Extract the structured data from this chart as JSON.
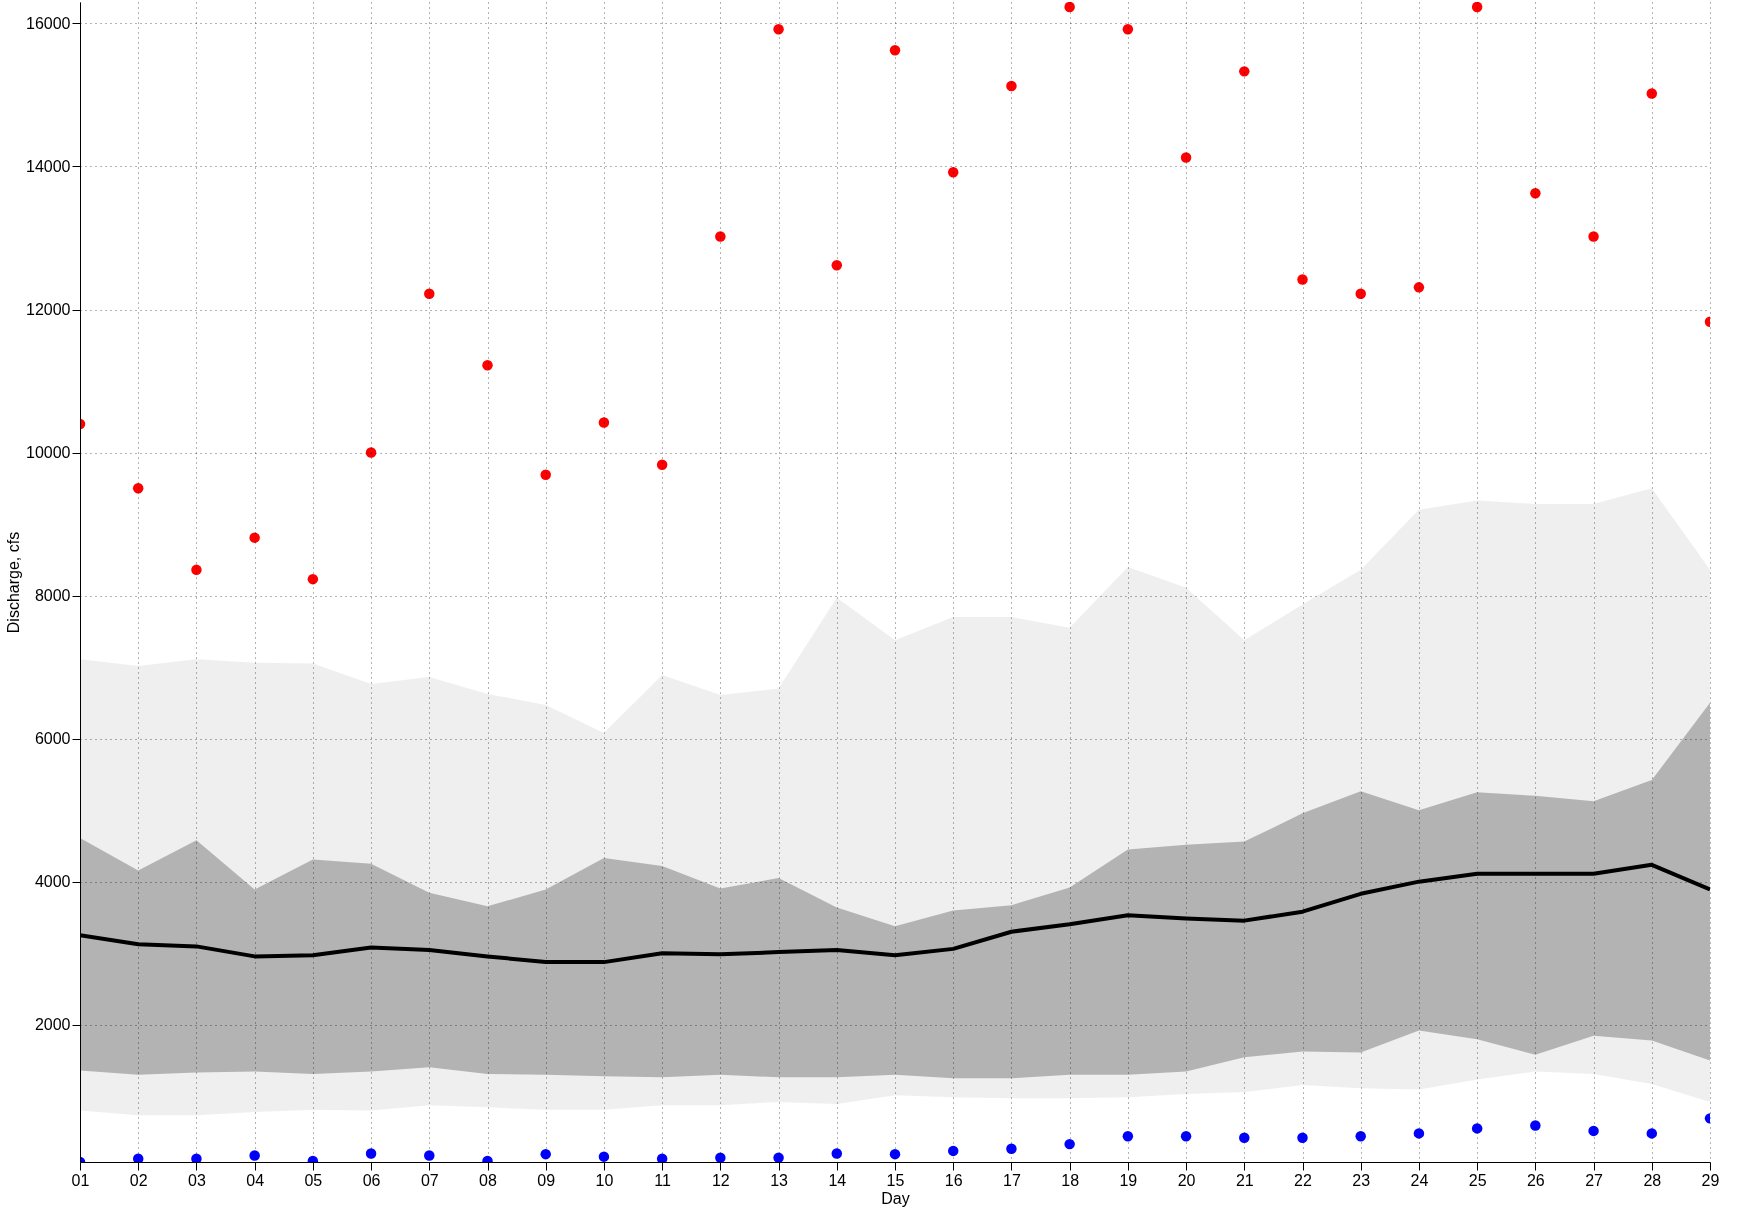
{
  "chart_data": {
    "type": "line",
    "xlabel": "Day",
    "ylabel": "Discharge, cfs",
    "categories": [
      "01",
      "02",
      "03",
      "04",
      "05",
      "06",
      "07",
      "08",
      "09",
      "10",
      "11",
      "12",
      "13",
      "14",
      "15",
      "16",
      "17",
      "18",
      "19",
      "20",
      "21",
      "22",
      "23",
      "24",
      "25",
      "26",
      "27",
      "28",
      "29"
    ],
    "ylim": [
      80,
      16300
    ],
    "yticks": [
      2000,
      4000,
      6000,
      8000,
      10000,
      12000,
      14000,
      16000
    ],
    "grid": true,
    "series": [
      {
        "type": "line",
        "color": "#bfbfbf",
        "values": [
          null,
          null,
          null,
          null,
          null,
          null,
          null,
          null,
          null,
          null,
          null,
          null,
          null,
          null,
          null,
          null,
          null,
          null,
          null,
          null,
          null,
          null,
          null,
          null,
          null,
          null,
          null,
          null,
          null
        ],
        "lower": [
          800,
          735,
          735,
          780,
          810,
          800,
          875,
          845,
          810,
          810,
          875,
          875,
          920,
          890,
          1015,
          985,
          970,
          970,
          985,
          1030,
          1060,
          1155,
          1110,
          1095,
          1235,
          1345,
          1310,
          1170,
          920
        ],
        "upper": [
          7110,
          7015,
          7110,
          7060,
          7050,
          6765,
          6860,
          6625,
          6470,
          6080,
          6890,
          6610,
          6700,
          7970,
          7375,
          7700,
          7700,
          7550,
          8400,
          8110,
          7375,
          7875,
          8360,
          9200,
          9330,
          9280,
          9280,
          9500,
          8360
        ]
      },
      {
        "color": "#000000",
        "values": [
          3250,
          3125,
          3095,
          2955,
          2970,
          3080,
          3045,
          2955,
          2875,
          2875,
          3000,
          2985,
          3015,
          3045,
          2970,
          3060,
          3300,
          3405,
          3530,
          3485,
          3455,
          3580,
          3830,
          4000,
          4110,
          4110,
          4110,
          4235,
          3890
        ],
        "lower": [
          1360,
          1300,
          1330,
          1345,
          1310,
          1345,
          1405,
          1310,
          1300,
          1280,
          1265,
          1300,
          1265,
          1265,
          1300,
          1250,
          1250,
          1300,
          1300,
          1345,
          1545,
          1625,
          1610,
          1920,
          1795,
          1580,
          1845,
          1780,
          1500
        ],
        "upper": [
          4610,
          4155,
          4580,
          3890,
          4310,
          4250,
          3845,
          3655,
          3890,
          4330,
          4220,
          3905,
          4050,
          3640,
          3375,
          3595,
          3670,
          3920,
          4450,
          4515,
          4560,
          4955,
          5265,
          5000,
          5250,
          5200,
          5125,
          5420,
          6500
        ]
      },
      {
        "type": "scatter",
        "color": "#ff0000",
        "marker": "circle",
        "values": [
          10400,
          9500,
          8360,
          8810,
          8230,
          10000,
          12220,
          11220,
          9690,
          10420,
          9830,
          13020,
          15920,
          12620,
          15625,
          13920,
          15125,
          16230,
          15920,
          14125,
          15330,
          12420,
          12220,
          12310,
          16230,
          13625,
          13020,
          15020,
          11830
        ]
      },
      {
        "type": "scatter",
        "color": "#0000ff",
        "marker": "circle",
        "values": [
          80,
          125,
          125,
          170,
          95,
          200,
          170,
          95,
          190,
          155,
          125,
          140,
          140,
          200,
          190,
          235,
          265,
          330,
          440,
          440,
          420,
          420,
          440,
          480,
          550,
          590,
          515,
          480,
          690
        ]
      }
    ]
  }
}
